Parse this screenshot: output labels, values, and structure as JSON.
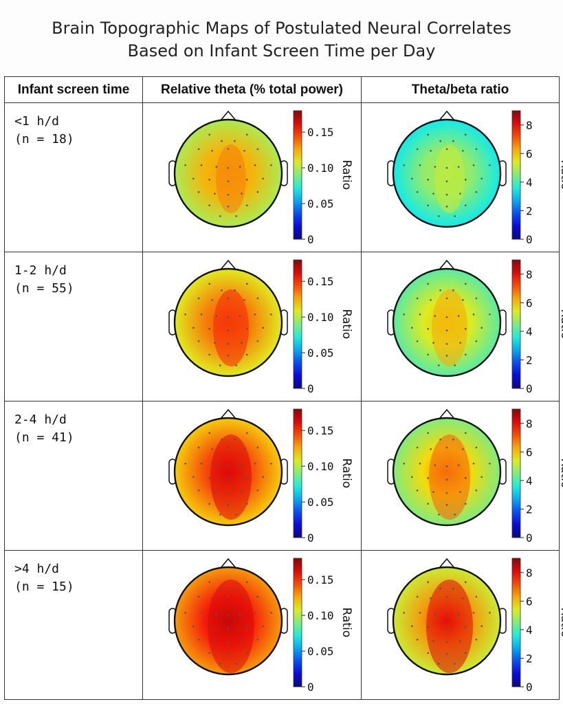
{
  "title": {
    "line1": "Brain Topographic Maps of Postulated Neural Correlates",
    "line2": "Based on Infant Screen Time per Day"
  },
  "table": {
    "headers": [
      "Infant screen time",
      "Relative theta (% total power)",
      "Theta/beta ratio"
    ],
    "colorbar_label": "Ratio",
    "theta_ticks": [
      "0.15",
      "0.10",
      "0.05",
      "0"
    ],
    "ratio_ticks": [
      "8",
      "6",
      "4",
      "2",
      "0"
    ],
    "rows": [
      {
        "range": "<1 h/d",
        "n": "(n = 18)",
        "theta_level": 0.12,
        "ratio_level": 4.5
      },
      {
        "range": "1-2 h/d",
        "n": "(n = 55)",
        "theta_level": 0.13,
        "ratio_level": 5.2
      },
      {
        "range": "2-4 h/d",
        "n": "(n = 41)",
        "theta_level": 0.14,
        "ratio_level": 5.6
      },
      {
        "range": ">4 h/d",
        "n": "(n = 15)",
        "theta_level": 0.15,
        "ratio_level": 6.3
      }
    ]
  }
}
